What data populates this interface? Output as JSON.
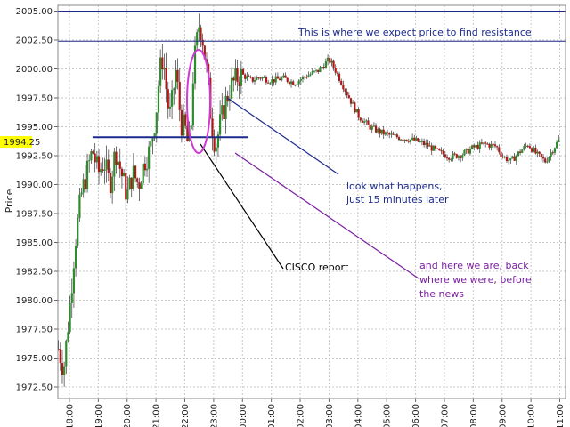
{
  "chart_data": {
    "type": "candlestick",
    "ylabel": "Price",
    "ylim": [
      1971.5,
      2005.5
    ],
    "y_ticks": [
      "2005.00",
      "2002.50",
      "2000.00",
      "1997.50",
      "1995.00",
      "1992.50",
      "1990.00",
      "1987.50",
      "1985.00",
      "1982.50",
      "1980.00",
      "1977.50",
      "1975.00",
      "1972.50"
    ],
    "y_tick_values": [
      2005.0,
      2002.5,
      2000.0,
      1997.5,
      1995.0,
      1992.5,
      1990.0,
      1987.5,
      1985.0,
      1982.5,
      1980.0,
      1977.5,
      1975.0,
      1972.5
    ],
    "x_ticks": [
      "18:00",
      "19:00",
      "20:00",
      "21:00",
      "22:00",
      "23:00",
      "00:00",
      "01:00",
      "02:00",
      "03:00",
      "04:00",
      "05:00",
      "06:00",
      "07:00",
      "08:00",
      "09:00",
      "10:00",
      "11:00"
    ],
    "x_tick_hours": [
      18,
      19,
      20,
      21,
      22,
      23,
      24,
      25,
      26,
      27,
      28,
      29,
      30,
      31,
      32,
      33,
      34,
      35
    ],
    "x_range_hours": [
      17.6,
      35.2
    ],
    "current_price": "1994.25",
    "current_price_value": 1994.25,
    "current_price_color": "#ffff00",
    "grid": true,
    "up_color": "#2e8b2e",
    "down_color": "#b01818",
    "resistance_lines": [
      {
        "value": 2005.0,
        "color": "#1c2a8c"
      },
      {
        "value": 2002.4,
        "color": "#1c2a8c"
      }
    ],
    "support_line": {
      "value": 1994.1,
      "from_hour": 18.8,
      "to_hour": 24.2,
      "color": "#1c2a8c"
    },
    "price_path": [
      [
        17.6,
        1976
      ],
      [
        17.8,
        1974
      ],
      [
        18.0,
        1979
      ],
      [
        18.2,
        1985
      ],
      [
        18.4,
        1989
      ],
      [
        18.6,
        1991
      ],
      [
        18.8,
        1993
      ],
      [
        19.0,
        1991
      ],
      [
        19.2,
        1992
      ],
      [
        19.4,
        1990
      ],
      [
        19.6,
        1993
      ],
      [
        19.8,
        1991
      ],
      [
        20.0,
        1989
      ],
      [
        20.2,
        1991
      ],
      [
        20.4,
        1990
      ],
      [
        20.6,
        1992
      ],
      [
        20.8,
        1993
      ],
      [
        21.0,
        1996
      ],
      [
        21.1,
        1999
      ],
      [
        21.2,
        2001
      ],
      [
        21.3,
        2000
      ],
      [
        21.4,
        1997
      ],
      [
        21.5,
        1996
      ],
      [
        21.6,
        1998
      ],
      [
        21.7,
        2000
      ],
      [
        21.8,
        1997
      ],
      [
        21.9,
        1995
      ],
      [
        22.0,
        1995
      ],
      [
        22.1,
        1993.5
      ],
      [
        22.2,
        1994
      ],
      [
        22.3,
        2000
      ],
      [
        22.4,
        2002
      ],
      [
        22.5,
        2004
      ],
      [
        22.6,
        2003
      ],
      [
        22.7,
        2001
      ],
      [
        22.8,
        1999
      ],
      [
        22.9,
        1996
      ],
      [
        23.0,
        1994
      ],
      [
        23.1,
        1993.5
      ],
      [
        23.2,
        1995
      ],
      [
        23.4,
        1997
      ],
      [
        23.6,
        1998.5
      ],
      [
        23.8,
        1999.2
      ],
      [
        24.0,
        1999.5
      ],
      [
        24.3,
        1999
      ],
      [
        24.6,
        1999.3
      ],
      [
        25.0,
        1999
      ],
      [
        25.4,
        1999.2
      ],
      [
        25.8,
        1998.8
      ],
      [
        26.2,
        1999.4
      ],
      [
        26.6,
        1999.8
      ],
      [
        27.0,
        2000.8
      ],
      [
        27.2,
        2000
      ],
      [
        27.4,
        1999
      ],
      [
        27.6,
        1998
      ],
      [
        27.8,
        1997
      ],
      [
        28.0,
        1996
      ],
      [
        28.2,
        1995.5
      ],
      [
        28.4,
        1995
      ],
      [
        28.8,
        1994.5
      ],
      [
        29.2,
        1994.2
      ],
      [
        29.6,
        1994
      ],
      [
        30.0,
        1993.8
      ],
      [
        30.4,
        1993.4
      ],
      [
        30.8,
        1992.8
      ],
      [
        31.2,
        1992.4
      ],
      [
        31.6,
        1992.6
      ],
      [
        32.0,
        1993.2
      ],
      [
        32.4,
        1993.5
      ],
      [
        32.8,
        1993.3
      ],
      [
        33.0,
        1992.5
      ],
      [
        33.3,
        1992
      ],
      [
        33.6,
        1992.8
      ],
      [
        33.9,
        1993.5
      ],
      [
        34.2,
        1992.6
      ],
      [
        34.5,
        1992
      ],
      [
        34.8,
        1993.2
      ],
      [
        35.0,
        1994
      ]
    ],
    "annotations": [
      {
        "text": "This is where we expect price to find resistance",
        "color": "#1c2a8c"
      },
      {
        "text": "look what happens,",
        "color": "#1c2a8c"
      },
      {
        "text": "just 15 minutes later",
        "color": "#1c2a8c"
      },
      {
        "text": "CISCO report",
        "color": "#000000"
      },
      {
        "text": "and here we are, back",
        "color": "#7a1ea0"
      },
      {
        "text": "where we were, before",
        "color": "#7a1ea0"
      },
      {
        "text": "the news",
        "color": "#7a1ea0"
      }
    ],
    "ellipse_color": "#d23ad8"
  }
}
